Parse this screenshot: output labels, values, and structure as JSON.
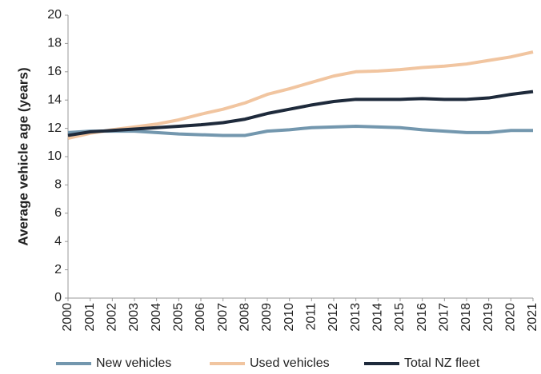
{
  "chart_data": {
    "type": "line",
    "ylabel": "Average vehicle age (years)",
    "x": [
      2000,
      2001,
      2002,
      2003,
      2004,
      2005,
      2006,
      2007,
      2008,
      2009,
      2010,
      2011,
      2012,
      2013,
      2014,
      2015,
      2016,
      2017,
      2018,
      2019,
      2020,
      2021
    ],
    "xlim": [
      2000,
      2021
    ],
    "ylim": [
      0,
      20
    ],
    "yticks": [
      0,
      2,
      4,
      6,
      8,
      10,
      12,
      14,
      16,
      18,
      20
    ],
    "grid": false,
    "legend": "bottom",
    "series": [
      {
        "name": "New vehicles",
        "color": "#7397ae",
        "values": [
          11.7,
          11.8,
          11.8,
          11.8,
          11.7,
          11.6,
          11.55,
          11.5,
          11.5,
          11.8,
          11.9,
          12.05,
          12.1,
          12.15,
          12.1,
          12.05,
          11.9,
          11.8,
          11.7,
          11.7,
          11.85,
          11.85
        ]
      },
      {
        "name": "Used vehicles",
        "color": "#f1c5a0",
        "values": [
          11.3,
          11.65,
          11.9,
          12.1,
          12.3,
          12.6,
          13.0,
          13.35,
          13.8,
          14.4,
          14.8,
          15.25,
          15.7,
          16.0,
          16.05,
          16.15,
          16.3,
          16.4,
          16.55,
          16.8,
          17.05,
          17.4
        ]
      },
      {
        "name": "Total NZ fleet",
        "color": "#1e2a3b",
        "values": [
          11.5,
          11.75,
          11.85,
          11.95,
          12.05,
          12.15,
          12.25,
          12.4,
          12.65,
          13.05,
          13.35,
          13.65,
          13.9,
          14.05,
          14.05,
          14.05,
          14.1,
          14.05,
          14.05,
          14.15,
          14.4,
          14.6
        ]
      }
    ]
  }
}
